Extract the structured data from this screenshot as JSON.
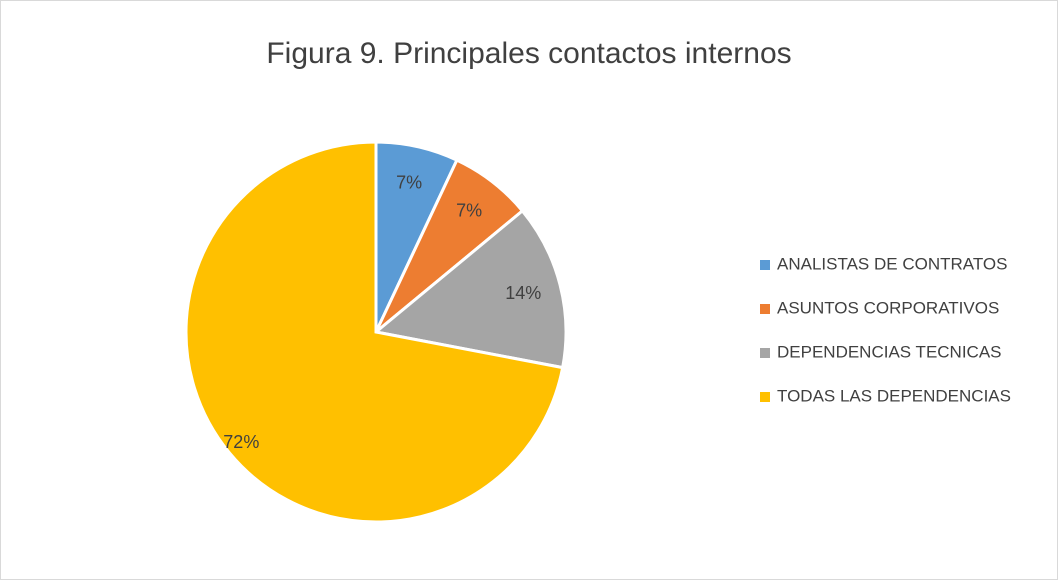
{
  "chart_data": {
    "type": "pie",
    "title": "Figura 9. Principales contactos internos",
    "categories": [
      "ANALISTAS DE CONTRATOS",
      "ASUNTOS CORPORATIVOS",
      "DEPENDENCIAS TECNICAS",
      "TODAS LAS DEPENDENCIAS"
    ],
    "values": [
      7,
      7,
      14,
      72
    ],
    "value_labels": [
      "7%",
      "7%",
      "14%",
      "72%"
    ],
    "colors": [
      "#5b9bd5",
      "#ed7d31",
      "#a5a5a5",
      "#ffc000"
    ],
    "legend": "right"
  }
}
